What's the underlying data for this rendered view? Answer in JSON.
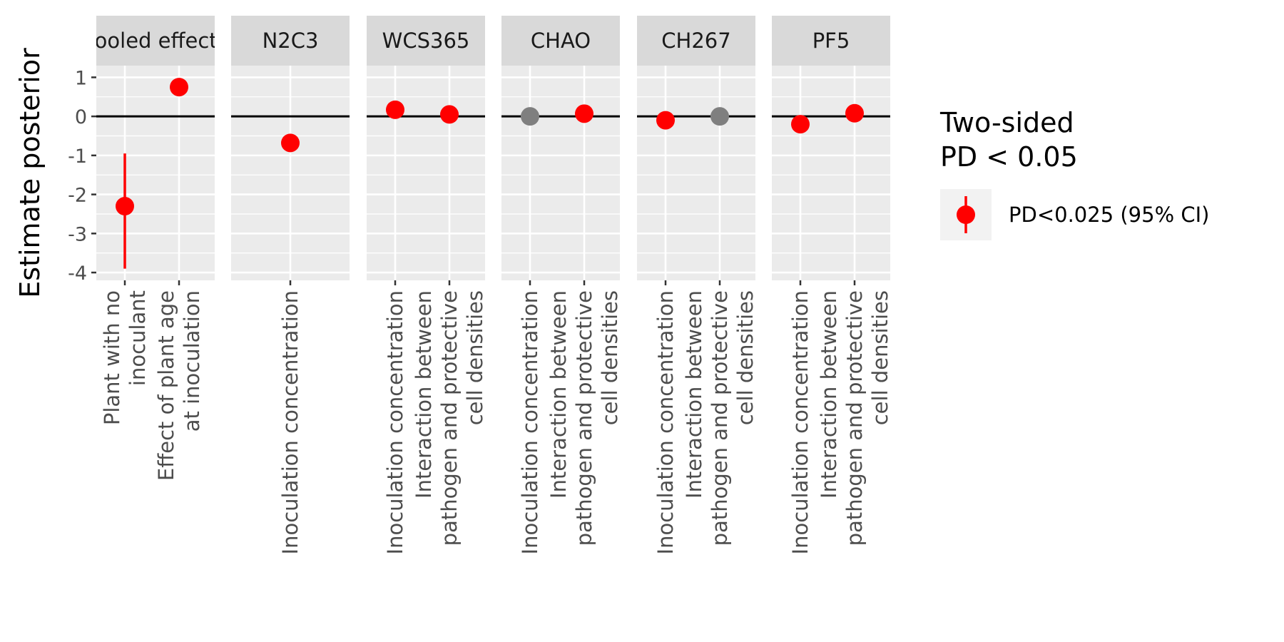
{
  "chart_data": {
    "type": "scatter",
    "ylabel": "Estimate posterior",
    "ylim": [
      -4.2,
      1.3
    ],
    "yticks": [
      1,
      0,
      -1,
      -2,
      -3,
      -4
    ],
    "grid": true,
    "reference_line": 0,
    "legend": {
      "title_lines": [
        "Two-sided",
        "PD < 0.05"
      ],
      "placement": "right",
      "items": [
        {
          "label": "PD<0.025 (95% CI)",
          "color": "#ff0000"
        }
      ]
    },
    "colors": {
      "significant": "#ff0000",
      "not_significant": "#7f7f7f"
    },
    "panels": [
      {
        "strip": "Pooled effects",
        "categories": [
          [
            "Plant with no",
            "inoculant"
          ],
          [
            "Effect of plant age",
            "at inoculation"
          ]
        ],
        "points": [
          {
            "y": -2.3,
            "ci": [
              -3.9,
              -0.95
            ],
            "significant": true
          },
          {
            "y": 0.75,
            "significant": true
          }
        ]
      },
      {
        "strip": "N2C3",
        "categories": [
          [
            "Inoculation concentration"
          ]
        ],
        "points": [
          {
            "y": -0.68,
            "significant": true
          }
        ]
      },
      {
        "strip": "WCS365",
        "categories": [
          [
            "Inoculation concentration"
          ],
          [
            "Interaction between",
            "pathogen and protective",
            "cell densities"
          ]
        ],
        "points": [
          {
            "y": 0.17,
            "significant": true
          },
          {
            "y": 0.05,
            "significant": true
          }
        ]
      },
      {
        "strip": "CHAO",
        "categories": [
          [
            "Inoculation concentration"
          ],
          [
            "Interaction between",
            "pathogen and protective",
            "cell densities"
          ]
        ],
        "points": [
          {
            "y": 0.0,
            "significant": false
          },
          {
            "y": 0.07,
            "significant": true
          }
        ]
      },
      {
        "strip": "CH267",
        "categories": [
          [
            "Inoculation concentration"
          ],
          [
            "Interaction between",
            "pathogen and protective",
            "cell densities"
          ]
        ],
        "points": [
          {
            "y": -0.1,
            "significant": true
          },
          {
            "y": 0.0,
            "significant": false
          }
        ]
      },
      {
        "strip": "PF5",
        "categories": [
          [
            "Inoculation concentration"
          ],
          [
            "Interaction between",
            "pathogen and protective",
            "cell densities"
          ]
        ],
        "points": [
          {
            "y": -0.2,
            "significant": true
          },
          {
            "y": 0.08,
            "significant": true
          }
        ]
      }
    ]
  }
}
